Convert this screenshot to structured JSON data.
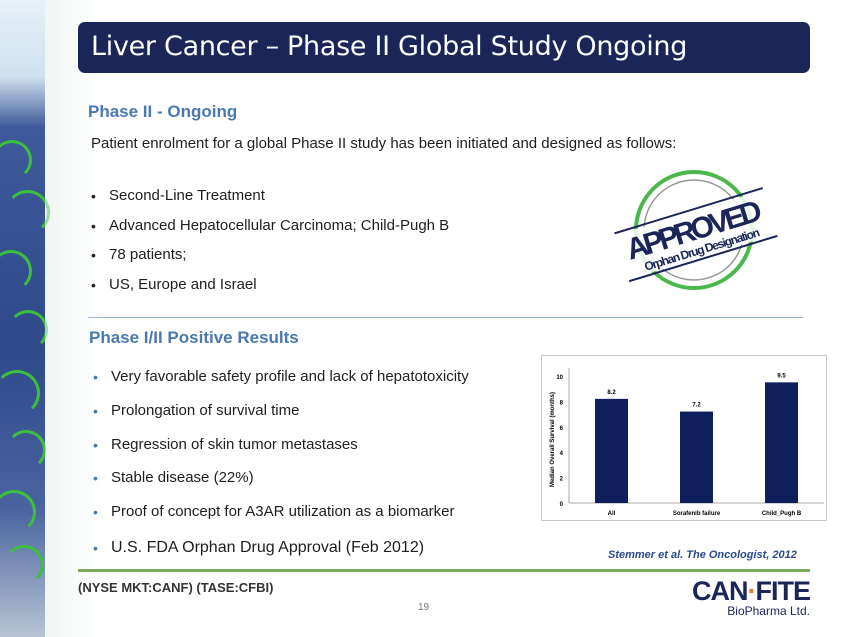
{
  "title": "Liver Cancer – Phase II Global Study Ongoing",
  "section1": {
    "heading": "Phase II - Ongoing",
    "intro": "Patient enrolment for a global Phase II study has been initiated and designed as follows:",
    "bullets": [
      "Second-Line Treatment",
      "Advanced Hepatocellular Carcinoma; Child-Pugh B",
      "78 patients;",
      "US, Europe and Israel"
    ]
  },
  "stamp": {
    "line1": "APPROVED",
    "line2": "Orphan Drug Designation"
  },
  "section2": {
    "heading": "Phase I/II Positive Results",
    "bullets": [
      "Very favorable safety profile and lack of hepatotoxicity",
      "Prolongation of survival time",
      "Regression of skin tumor metastases",
      "Stable disease (22%)",
      "Proof of concept for A3AR utilization as a biomarker",
      "U.S. FDA Orphan Drug Approval (Feb 2012)"
    ]
  },
  "chart_data": {
    "type": "bar",
    "categories": [
      "All",
      "Sorafenib failure",
      "Child_Pugh B"
    ],
    "values": [
      8.2,
      7.2,
      9.5
    ],
    "labels": [
      "8.2",
      "7.2",
      "9.5"
    ],
    "ylabel": "Median Overall Survival (months)",
    "ylim": [
      0,
      10
    ],
    "yticks": [
      "0",
      "2",
      "4",
      "6",
      "8",
      "10"
    ],
    "bar_color": "#0f1f5c"
  },
  "citation": "Stemmer et al. The Oncologist, 2012",
  "footer": {
    "ticker": "(NYSE MKT:CANF)  (TASE:CFBI)",
    "page": "19",
    "logo_line1_a": "CAN",
    "logo_line1_b": "FITE",
    "logo_line2": "BioPharma Ltd."
  }
}
